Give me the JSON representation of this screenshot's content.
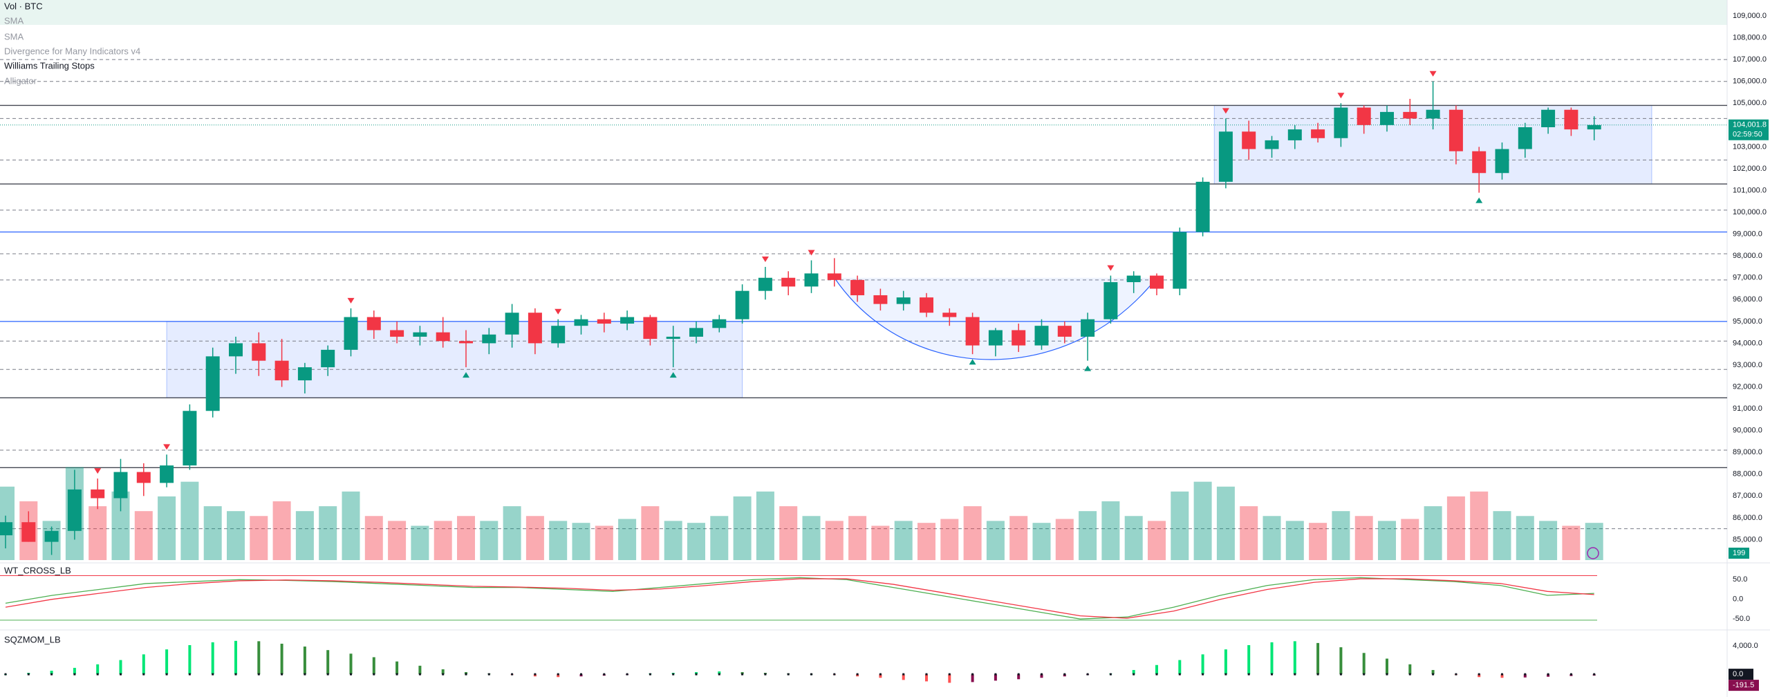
{
  "chart_data": {
    "type": "candlestick",
    "legend": [
      "Vol · BTC",
      "SMA",
      "SMA",
      "Divergence for Many Indicators v4",
      "Williams Trailing Stops",
      "Alligator"
    ],
    "up_color": "#089981",
    "down_color": "#f23645",
    "ylim": [
      84000,
      109730
    ],
    "yticks": [
      {
        "value": 85000,
        "label": "85,000.0"
      },
      {
        "value": 86000,
        "label": "86,000.0"
      },
      {
        "value": 87000,
        "label": "87,000.0"
      },
      {
        "value": 88000,
        "label": "88,000.0"
      },
      {
        "value": 89000,
        "label": "89,000.0"
      },
      {
        "value": 90000,
        "label": "90,000.0"
      },
      {
        "value": 91000,
        "label": "91,000.0"
      },
      {
        "value": 92000,
        "label": "92,000.0"
      },
      {
        "value": 93000,
        "label": "93,000.0"
      },
      {
        "value": 94000,
        "label": "94,000.0"
      },
      {
        "value": 95000,
        "label": "95,000.0"
      },
      {
        "value": 96000,
        "label": "96,000.0"
      },
      {
        "value": 97000,
        "label": "97,000.0"
      },
      {
        "value": 98000,
        "label": "98,000.0"
      },
      {
        "value": 99000,
        "label": "99,000.0"
      },
      {
        "value": 100000,
        "label": "100,000.0"
      },
      {
        "value": 101000,
        "label": "101,000.0"
      },
      {
        "value": 102000,
        "label": "102,000.0"
      },
      {
        "value": 103000,
        "label": "103,000.0"
      },
      {
        "value": 104000,
        "label": "104,000.0"
      },
      {
        "value": 105000,
        "label": "105,000.0"
      },
      {
        "value": 106000,
        "label": "106,000.0"
      },
      {
        "value": 107000,
        "label": "107,000.0"
      },
      {
        "value": 108000,
        "label": "108,000.0"
      },
      {
        "value": 109000,
        "label": "109,000.0"
      }
    ],
    "candles": [
      [
        85200,
        86100,
        84600,
        85800
      ],
      [
        85800,
        86300,
        84900,
        84900
      ],
      [
        84900,
        85600,
        84300,
        85400
      ],
      [
        85400,
        88200,
        85000,
        87300
      ],
      [
        87300,
        87800,
        86400,
        86900
      ],
      [
        86900,
        88700,
        86300,
        88100
      ],
      [
        88100,
        88500,
        87000,
        87600
      ],
      [
        87600,
        88900,
        87400,
        88400
      ],
      [
        88400,
        91200,
        88200,
        90900
      ],
      [
        90900,
        93800,
        90600,
        93400
      ],
      [
        93400,
        94300,
        92600,
        94000
      ],
      [
        94000,
        94500,
        92500,
        93200
      ],
      [
        93200,
        94200,
        92000,
        92300
      ],
      [
        92300,
        93100,
        91700,
        92900
      ],
      [
        92900,
        93900,
        92500,
        93700
      ],
      [
        93700,
        95600,
        93400,
        95200
      ],
      [
        95200,
        95500,
        94200,
        94600
      ],
      [
        94600,
        95000,
        94000,
        94300
      ],
      [
        94300,
        94800,
        93900,
        94500
      ],
      [
        94500,
        95200,
        93800,
        94100
      ],
      [
        94100,
        94600,
        92900,
        94000
      ],
      [
        94000,
        94700,
        93500,
        94400
      ],
      [
        94400,
        95800,
        93800,
        95400
      ],
      [
        95400,
        95600,
        93500,
        94000
      ],
      [
        94000,
        95100,
        93800,
        94800
      ],
      [
        94800,
        95300,
        94400,
        95100
      ],
      [
        95100,
        95400,
        94500,
        94900
      ],
      [
        94900,
        95500,
        94600,
        95200
      ],
      [
        95200,
        95300,
        93900,
        94200
      ],
      [
        94200,
        94800,
        92900,
        94300
      ],
      [
        94300,
        95000,
        94000,
        94700
      ],
      [
        94700,
        95300,
        94500,
        95100
      ],
      [
        95100,
        96700,
        94900,
        96400
      ],
      [
        96400,
        97500,
        96000,
        97000
      ],
      [
        97000,
        97300,
        96200,
        96600
      ],
      [
        96600,
        97800,
        96300,
        97200
      ],
      [
        97200,
        97900,
        96600,
        96900
      ],
      [
        96900,
        97100,
        95900,
        96200
      ],
      [
        96200,
        96500,
        95500,
        95800
      ],
      [
        95800,
        96400,
        95500,
        96100
      ],
      [
        96100,
        96300,
        95200,
        95400
      ],
      [
        95400,
        95600,
        94800,
        95200
      ],
      [
        95200,
        95400,
        93500,
        93900
      ],
      [
        93900,
        94700,
        93400,
        94600
      ],
      [
        94600,
        94900,
        93600,
        93900
      ],
      [
        93900,
        95100,
        93700,
        94800
      ],
      [
        94800,
        95000,
        94000,
        94300
      ],
      [
        94300,
        95400,
        93200,
        95100
      ],
      [
        95100,
        97100,
        94900,
        96800
      ],
      [
        96800,
        97300,
        96300,
        97100
      ],
      [
        97100,
        97200,
        96200,
        96500
      ],
      [
        96500,
        99300,
        96200,
        99100
      ],
      [
        99100,
        101600,
        98900,
        101400
      ],
      [
        101400,
        104300,
        101100,
        103700
      ],
      [
        103700,
        104200,
        102400,
        102900
      ],
      [
        102900,
        103500,
        102500,
        103300
      ],
      [
        103300,
        104000,
        102900,
        103800
      ],
      [
        103800,
        104100,
        103200,
        103400
      ],
      [
        103400,
        105000,
        103000,
        104800
      ],
      [
        104800,
        104900,
        103600,
        104000
      ],
      [
        104000,
        104900,
        103700,
        104600
      ],
      [
        104600,
        105200,
        104000,
        104300
      ],
      [
        104300,
        106000,
        103800,
        104700
      ],
      [
        104700,
        104900,
        102200,
        102800
      ],
      [
        102800,
        103000,
        100900,
        101800
      ],
      [
        101800,
        103200,
        101500,
        102900
      ],
      [
        102900,
        104100,
        102500,
        103900
      ],
      [
        103900,
        104800,
        103600,
        104700
      ],
      [
        104700,
        104800,
        103500,
        103800
      ],
      [
        103800,
        104400,
        103300,
        104001.8
      ]
    ],
    "volume": {
      "ylim": [
        0,
        120
      ],
      "up_color": "rgba(8,153,129,0.42)",
      "down_color": "rgba(242,54,69,0.42)",
      "tag": 199,
      "values": [
        75,
        60,
        40,
        95,
        55,
        70,
        50,
        65,
        80,
        55,
        50,
        45,
        60,
        50,
        55,
        70,
        45,
        40,
        35,
        40,
        45,
        40,
        55,
        45,
        40,
        38,
        35,
        42,
        55,
        40,
        38,
        45,
        65,
        70,
        55,
        45,
        40,
        45,
        35,
        40,
        38,
        42,
        55,
        40,
        45,
        38,
        42,
        50,
        60,
        45,
        40,
        70,
        80,
        75,
        55,
        45,
        40,
        38,
        50,
        45,
        40,
        42,
        55,
        65,
        70,
        50,
        45,
        40,
        35,
        38
      ]
    },
    "levels": [
      {
        "value": 107000,
        "color": "#787b86",
        "style": "dashed"
      },
      {
        "value": 106000,
        "color": "#787b86",
        "style": "dashed"
      },
      {
        "value": 104900,
        "color": "#434651",
        "style": "solid"
      },
      {
        "value": 104300,
        "color": "#787b86",
        "style": "dashed"
      },
      {
        "value": 102400,
        "color": "#787b86",
        "style": "dashed"
      },
      {
        "value": 101300,
        "color": "#434651",
        "style": "solid"
      },
      {
        "value": 100100,
        "color": "#787b86",
        "style": "dashed"
      },
      {
        "value": 99100,
        "color": "#2962ff",
        "style": "solid"
      },
      {
        "value": 98100,
        "color": "#787b86",
        "style": "dashed"
      },
      {
        "value": 96900,
        "color": "#787b86",
        "style": "dashed"
      },
      {
        "value": 95000,
        "color": "#2962ff",
        "style": "solid"
      },
      {
        "value": 94100,
        "color": "#787b86",
        "style": "dashed"
      },
      {
        "value": 92800,
        "color": "#787b86",
        "style": "dashed"
      },
      {
        "value": 91500,
        "color": "#434651",
        "style": "solid"
      },
      {
        "value": 89100,
        "color": "#787b86",
        "style": "dashed"
      },
      {
        "value": 88300,
        "color": "#434651",
        "style": "solid"
      },
      {
        "value": 85500,
        "color": "#787b86",
        "style": "dashed"
      }
    ],
    "zones": [
      {
        "x": [
          7,
          32
        ],
        "y": [
          91500,
          95000
        ]
      },
      {
        "x": [
          52.5,
          71.5
        ],
        "y": [
          101300,
          104900
        ]
      }
    ],
    "cup": {
      "start": [
        36,
        97000
      ],
      "bottom": [
        42.5,
        93300
      ],
      "end": [
        50,
        97000
      ]
    },
    "pivot_highs": [
      4,
      7,
      15,
      24,
      33,
      35,
      48,
      53,
      58,
      62
    ],
    "pivot_lows": [
      20,
      29,
      42,
      47,
      64
    ],
    "price_tag": {
      "value": 104001.8,
      "label": "104,001.8",
      "countdown": "02:59:50",
      "color": "#089981"
    },
    "wt": {
      "title": "WT_CROSS_LB",
      "ylim": [
        -69,
        82
      ],
      "yticks": [
        {
          "value": 50,
          "label": "50.0"
        },
        {
          "value": 0,
          "label": "0.0"
        },
        {
          "value": -50,
          "label": "-50.0"
        }
      ],
      "bands": [
        {
          "value": 60,
          "color": "#f23645"
        },
        {
          "value": -53,
          "color": "#4caf50"
        }
      ],
      "series": [
        {
          "color": "#4caf50",
          "values": [
            -10,
            10,
            25,
            40,
            45,
            50,
            48,
            45,
            40,
            35,
            30,
            30,
            25,
            20,
            30,
            40,
            50,
            55,
            50,
            30,
            10,
            -10,
            -30,
            -50,
            -45,
            -20,
            10,
            35,
            50,
            55,
            50,
            45,
            35,
            10,
            15
          ]
        },
        {
          "color": "#f23645",
          "values": [
            -20,
            0,
            15,
            30,
            40,
            47,
            49,
            47,
            43,
            38,
            33,
            31,
            28,
            23,
            26,
            35,
            45,
            52,
            52,
            38,
            18,
            -2,
            -22,
            -42,
            -48,
            -30,
            0,
            25,
            43,
            52,
            52,
            47,
            40,
            20,
            12
          ]
        }
      ]
    },
    "sqz": {
      "title": "SQZMOM_LB",
      "ylim": [
        -3200,
        5850
      ],
      "yticks": [
        {
          "value": 4000,
          "label": "4,000.0"
        }
      ],
      "colors": {
        "up_rising": "#00e676",
        "up_falling": "#388e3c",
        "down_falling": "#ff5252",
        "down_rising": "#880e4f"
      },
      "tags": [
        {
          "value": 0,
          "label": "0.0"
        },
        -191.5
      ],
      "values": [
        0,
        200,
        500,
        900,
        1400,
        2000,
        2800,
        3500,
        4100,
        4500,
        4700,
        4650,
        4300,
        3900,
        3400,
        2900,
        2400,
        1800,
        1200,
        700,
        300,
        100,
        -100,
        -300,
        -400,
        -300,
        -200,
        -100,
        100,
        200,
        300,
        400,
        300,
        200,
        100,
        50,
        -100,
        -300,
        -500,
        -800,
        -1000,
        -1200,
        -1100,
        -900,
        -700,
        -500,
        -300,
        -100,
        100,
        600,
        1300,
        2000,
        2800,
        3500,
        4100,
        4500,
        4650,
        4400,
        3800,
        3000,
        2200,
        1400,
        600,
        -100,
        -400,
        -500,
        -450,
        -350,
        -250,
        -191.5
      ]
    }
  }
}
